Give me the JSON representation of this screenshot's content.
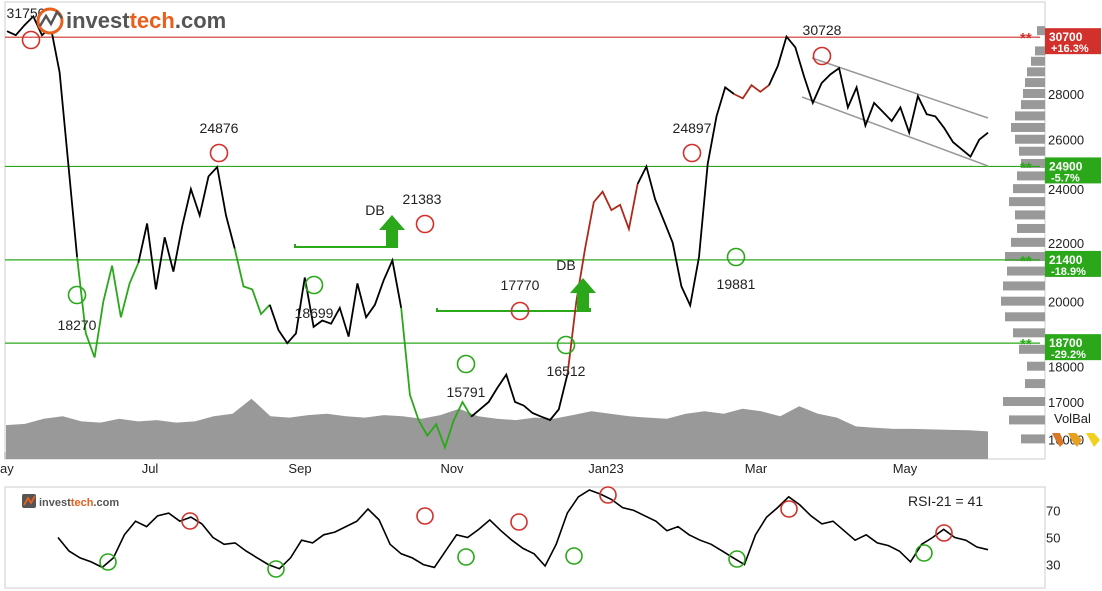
{
  "brand": {
    "name_part1": "invest",
    "name_part2": "tech",
    "name_part3": ".com",
    "color_dark": "#555555",
    "color_accent": "#e8601c"
  },
  "colors": {
    "price_line": "#000000",
    "uptrend": "#2aa81a",
    "downtrend": "#b0281a",
    "support": "#2aa81a",
    "resistance": "#d2302a",
    "volume": "#999999",
    "channel": "#999999",
    "histogram": "#999999"
  },
  "chart_data": [
    {
      "type": "line",
      "x_ticks": [
        "ay",
        "Jul",
        "Sep",
        "Nov",
        "Jan23",
        "Mar",
        "May"
      ],
      "y_ticks": [
        16000,
        17000,
        18000,
        20000,
        22000,
        24000,
        26000,
        28000
      ],
      "y_range": [
        15500,
        32500
      ],
      "tops": [
        {
          "label": "31750",
          "value": 31750
        },
        {
          "label": "24876",
          "value": 24876
        },
        {
          "label": "21383",
          "value": 21383
        },
        {
          "label": "17770",
          "value": 17770
        },
        {
          "label": "24897",
          "value": 24897
        },
        {
          "label": "30728",
          "value": 30728
        }
      ],
      "bottoms": [
        {
          "label": "18270",
          "value": 18270
        },
        {
          "label": "18699",
          "value": 18699
        },
        {
          "label": "15791",
          "value": 15791
        },
        {
          "label": "16512",
          "value": 16512
        },
        {
          "label": "19881",
          "value": 19881
        }
      ],
      "levels": [
        {
          "value": 30700,
          "label": "30700",
          "change": "+16.3%",
          "kind": "resistance"
        },
        {
          "value": 24900,
          "label": "24900",
          "change": "-5.7%",
          "kind": "support"
        },
        {
          "value": 21400,
          "label": "21400",
          "change": "-18.9%",
          "kind": "support"
        },
        {
          "value": 18700,
          "label": "18700",
          "change": "-29.2%",
          "kind": "support"
        }
      ],
      "signals": [
        {
          "label": "DB",
          "type": "double-bottom-buy"
        },
        {
          "label": "DB",
          "type": "double-bottom-buy"
        }
      ],
      "price_series": [
        31000,
        30800,
        31300,
        31750,
        30800,
        31200,
        29000,
        25000,
        21500,
        19000,
        18270,
        20000,
        21200,
        19500,
        20600,
        21300,
        22700,
        20400,
        22200,
        21000,
        22600,
        24000,
        23000,
        24500,
        24876,
        23000,
        21800,
        20500,
        20400,
        19600,
        19900,
        19100,
        18699,
        19000,
        20800,
        19200,
        19400,
        19300,
        19800,
        18900,
        20600,
        19500,
        19900,
        20700,
        21383,
        19800,
        17200,
        16500,
        16100,
        16400,
        15791,
        16500,
        17000,
        16600,
        16800,
        17000,
        17400,
        17770,
        17000,
        16900,
        16700,
        16600,
        16512,
        16800,
        17800,
        20000,
        21800,
        23500,
        23900,
        23200,
        23400,
        22500,
        24200,
        24897,
        23600,
        22800,
        22000,
        20500,
        19881,
        21500,
        25000,
        27000,
        28300,
        28000,
        27800,
        28400,
        28100,
        28400,
        29300,
        30728,
        30200,
        28800,
        27600,
        28500,
        28900,
        29200,
        27400,
        28300,
        26600,
        27600,
        27200,
        26800,
        27400,
        26300,
        27900,
        27100,
        27000,
        26500,
        25900,
        25600,
        25300,
        26000,
        26300
      ],
      "volume_series": [
        0.55,
        0.6,
        0.8,
        0.9,
        0.7,
        0.65,
        0.8,
        0.7,
        0.75,
        0.65,
        0.7,
        0.9,
        1.0,
        1.6,
        0.9,
        0.85,
        0.95,
        1.0,
        0.9,
        0.85,
        0.95,
        0.9,
        0.8,
        0.95,
        1.2,
        0.9,
        0.8,
        0.75,
        0.85,
        0.8,
        0.95,
        1.1,
        1.0,
        0.9,
        0.85,
        0.8,
        1.0,
        1.1,
        1.0,
        1.2,
        1.1,
        0.9,
        1.3,
        1.0,
        0.85,
        0.5,
        0.45,
        0.4,
        0.4,
        0.38,
        0.36,
        0.35,
        0.3
      ],
      "volbal_label": "VolBal"
    },
    {
      "type": "line",
      "title": "RSI-21 = 41",
      "y_ticks": [
        30,
        50,
        70
      ],
      "y_range": [
        15,
        85
      ],
      "overbought": 70,
      "oversold": 30,
      "rsi_series": [
        50,
        40,
        35,
        32,
        28,
        35,
        52,
        62,
        58,
        66,
        68,
        62,
        65,
        60,
        50,
        45,
        46,
        40,
        35,
        30,
        27,
        35,
        48,
        46,
        52,
        54,
        58,
        62,
        71,
        63,
        45,
        38,
        35,
        30,
        28,
        40,
        52,
        50,
        56,
        63,
        55,
        48,
        42,
        38,
        29,
        45,
        68,
        80,
        85,
        82,
        78,
        72,
        70,
        66,
        62,
        55,
        58,
        52,
        48,
        45,
        40,
        35,
        30,
        52,
        65,
        72,
        80,
        74,
        66,
        60,
        62,
        55,
        48,
        52,
        46,
        44,
        40,
        32,
        45,
        50,
        56,
        50,
        48,
        43,
        41
      ],
      "tops_count": 7,
      "bottoms_count": 7
    }
  ]
}
